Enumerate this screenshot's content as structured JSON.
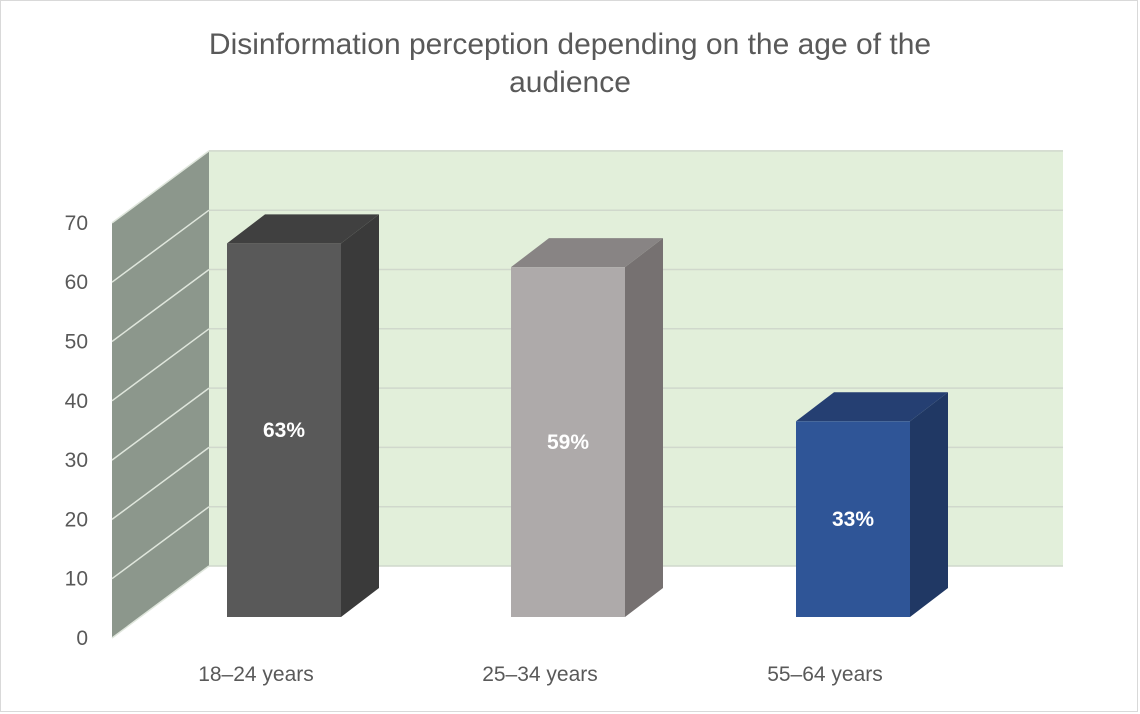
{
  "chart_data": {
    "type": "bar",
    "title_lines": [
      "Disinformation perception depending on the age of the",
      "audience"
    ],
    "categories": [
      "18–24 years",
      "25–34 years",
      "55–64 years"
    ],
    "values": [
      63,
      59,
      33
    ],
    "data_labels": [
      "63%",
      "59%",
      "33%"
    ],
    "y_ticks": [
      0,
      10,
      20,
      30,
      40,
      50,
      60,
      70
    ],
    "ylim": [
      0,
      70
    ],
    "grid": true,
    "legend": "none",
    "style": "3d-column",
    "colors": {
      "bars": [
        {
          "front": "#595959",
          "side": "#3a3a3a",
          "top": "#404040"
        },
        {
          "front": "#aeaaaa",
          "side": "#767171",
          "top": "#888484"
        },
        {
          "front": "#2f5597",
          "side": "#203864",
          "top": "#253f72"
        }
      ],
      "back_wall": "#e2efda",
      "side_wall": "#8c978c",
      "grid": "#d0d8cc",
      "text": "#595959"
    }
  }
}
